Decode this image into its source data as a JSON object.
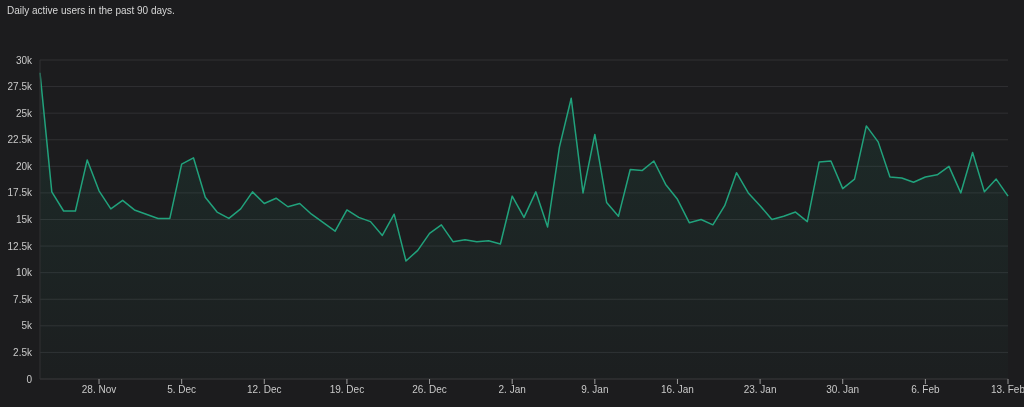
{
  "chart_data": {
    "type": "area",
    "title": "Daily active users in the past 90 days.",
    "categories": [
      null,
      null,
      null,
      null,
      null,
      "28. Nov",
      null,
      null,
      null,
      null,
      null,
      null,
      "5. Dec",
      null,
      null,
      null,
      null,
      null,
      null,
      "12. Dec",
      null,
      null,
      null,
      null,
      null,
      null,
      "19. Dec",
      null,
      null,
      null,
      null,
      null,
      null,
      "26. Dec",
      null,
      null,
      null,
      null,
      null,
      null,
      "2. Jan",
      null,
      null,
      null,
      null,
      null,
      null,
      "9. Jan",
      null,
      null,
      null,
      null,
      null,
      null,
      "16. Jan",
      null,
      null,
      null,
      null,
      null,
      null,
      "23. Jan",
      null,
      null,
      null,
      null,
      null,
      null,
      "30. Jan",
      null,
      null,
      null,
      null,
      null,
      null,
      "6. Feb",
      null,
      null,
      null,
      null,
      null,
      null,
      "13. Feb"
    ],
    "series": [
      {
        "color": "#21a27c",
        "values": [
          28800,
          17600,
          15800,
          15800,
          20600,
          17700,
          16000,
          16800,
          15900,
          15500,
          15100,
          15100,
          20200,
          20800,
          17100,
          15700,
          15100,
          16000,
          17600,
          16500,
          17000,
          16200,
          16500,
          15500,
          14700,
          13900,
          15900,
          15200,
          14800,
          13500,
          15500,
          11100,
          12100,
          13700,
          14500,
          12900,
          13100,
          12900,
          13000,
          12700,
          17200,
          15200,
          17600,
          14300,
          21800,
          26400,
          17500,
          23000,
          16600,
          15300,
          19700,
          19600,
          20500,
          18300,
          16900,
          14700,
          15000,
          14500,
          16300,
          19400,
          17500,
          16300,
          15000,
          15300,
          15700,
          14800,
          20400,
          20500,
          17900,
          18800,
          23800,
          22300,
          19000,
          18900,
          18500,
          19000,
          19200,
          20000,
          17500,
          21300,
          17600,
          18800,
          17200
        ]
      }
    ],
    "ylim": [
      0,
      30000
    ],
    "yticks": [
      0,
      {
        "value": 2500,
        "label": "2.5k"
      },
      {
        "value": 5000,
        "label": "5k"
      },
      {
        "value": 7500,
        "label": "7.5k"
      },
      {
        "value": 10000,
        "label": "10k"
      },
      {
        "value": 12500,
        "label": "12.5k"
      },
      {
        "value": 15000,
        "label": "15k"
      },
      {
        "value": 17500,
        "label": "17.5k"
      },
      {
        "value": 20000,
        "label": "20k"
      },
      {
        "value": 22500,
        "label": "22.5k"
      },
      {
        "value": 25000,
        "label": "25k"
      },
      {
        "value": 27500,
        "label": "27.5k"
      },
      {
        "value": 30000,
        "label": "30k"
      }
    ],
    "grid": "y",
    "legend": false
  }
}
